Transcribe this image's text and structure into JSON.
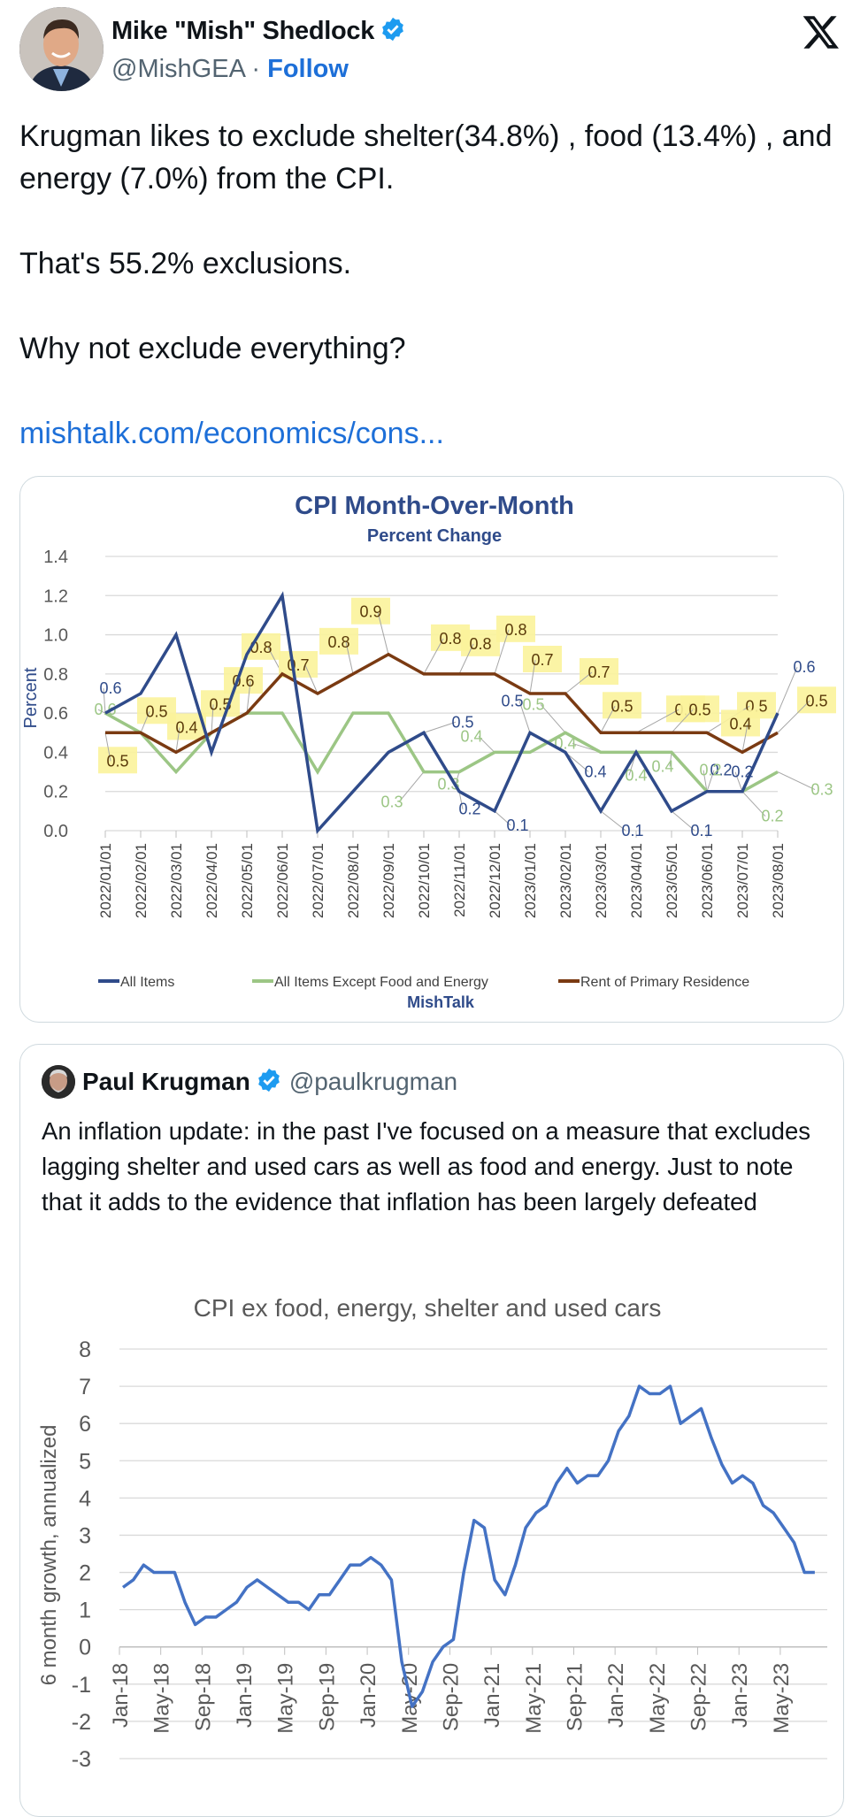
{
  "tweet": {
    "author_name": "Mike \"Mish\" Shedlock",
    "handle": "@MishGEA",
    "separator": "·",
    "follow_label": "Follow",
    "platform_icon": "x-logo-icon",
    "verified_icon": "verified-badge-icon",
    "text_lines": [
      "Krugman likes to exclude shelter(34.8%) , food (13.4%) , and energy (7.0%) from the CPI.",
      "That's 55.2% exclusions.",
      "Why not exclude everything?"
    ],
    "link_text": "mishtalk.com/economics/cons..."
  },
  "quoted_tweet": {
    "author_name": "Paul Krugman",
    "handle": "@paulkrugman",
    "verified_icon": "verified-badge-icon",
    "text": "An inflation update: in the past I've focused on a measure that excludes lagging shelter and used cars as well as food and energy. Just to note that it adds to the evidence that inflation has been largely defeated"
  },
  "colors": {
    "link": "#1d6fd8",
    "all_items": "#2f4b8a",
    "core": "#9cc685",
    "rent": "#7a3a12",
    "label_highlight": "#fbf39b",
    "krugman_line": "#4472c4"
  },
  "chart_data": [
    {
      "type": "line",
      "title": "CPI Month-Over-Month",
      "subtitle": "Percent Change",
      "xlabel": "",
      "ylabel": "Percent",
      "ylim": [
        0,
        1.4
      ],
      "yticks": [
        "0.0",
        "0.2",
        "0.4",
        "0.6",
        "0.8",
        "1.0",
        "1.2",
        "1.4"
      ],
      "grid": true,
      "legend_position": "bottom",
      "source_label": "MishTalk",
      "categories": [
        "2022/01/01",
        "2022/02/01",
        "2022/03/01",
        "2022/04/01",
        "2022/05/01",
        "2022/06/01",
        "2022/07/01",
        "2022/08/01",
        "2022/09/01",
        "2022/10/01",
        "2022/11/01",
        "2022/12/01",
        "2023/01/01",
        "2023/02/01",
        "2023/03/01",
        "2023/04/01",
        "2023/05/01",
        "2023/06/01",
        "2023/07/01",
        "2023/08/01"
      ],
      "series": [
        {
          "name": "All Items",
          "values": [
            0.6,
            0.7,
            1.0,
            0.4,
            0.9,
            1.2,
            0.0,
            0.2,
            0.4,
            0.5,
            0.2,
            0.1,
            0.5,
            0.4,
            0.1,
            0.4,
            0.1,
            0.2,
            0.2,
            0.6
          ]
        },
        {
          "name": "All Items Except Food and Energy",
          "values": [
            0.6,
            0.5,
            0.3,
            0.5,
            0.6,
            0.6,
            0.3,
            0.6,
            0.6,
            0.3,
            0.3,
            0.4,
            0.4,
            0.5,
            0.4,
            0.4,
            0.4,
            0.2,
            0.2,
            0.3
          ]
        },
        {
          "name": "Rent of Primary Residence",
          "values": [
            0.5,
            0.5,
            0.4,
            0.5,
            0.6,
            0.8,
            0.7,
            0.8,
            0.9,
            0.8,
            0.8,
            0.8,
            0.7,
            0.7,
            0.5,
            0.5,
            0.5,
            0.5,
            0.4,
            0.5
          ]
        }
      ],
      "data_labels": [
        {
          "series": 0,
          "index": 0,
          "text": "0.6"
        },
        {
          "series": 0,
          "index": 9,
          "text": "0.5"
        },
        {
          "series": 0,
          "index": 10,
          "text": "0.2"
        },
        {
          "series": 0,
          "index": 11,
          "text": "0.1"
        },
        {
          "series": 0,
          "index": 12,
          "text": "0.5"
        },
        {
          "series": 0,
          "index": 13,
          "text": "0.4"
        },
        {
          "series": 0,
          "index": 14,
          "text": "0.1"
        },
        {
          "series": 0,
          "index": 16,
          "text": "0.1"
        },
        {
          "series": 0,
          "index": 18,
          "text": "0.2"
        },
        {
          "series": 0,
          "index": 19,
          "text": "0.6"
        },
        {
          "series": 0,
          "index": 17,
          "text": "0.2"
        },
        {
          "series": 1,
          "index": 0,
          "text": "0.6"
        },
        {
          "series": 1,
          "index": 9,
          "text": "0.3"
        },
        {
          "series": 1,
          "index": 10,
          "text": "0.3"
        },
        {
          "series": 1,
          "index": 11,
          "text": "0.4"
        },
        {
          "series": 1,
          "index": 13,
          "text": "0.5"
        },
        {
          "series": 1,
          "index": 14,
          "text": "0.4"
        },
        {
          "series": 1,
          "index": 15,
          "text": "0.4"
        },
        {
          "series": 1,
          "index": 16,
          "text": "0.4"
        },
        {
          "series": 1,
          "index": 17,
          "text": "0.2"
        },
        {
          "series": 1,
          "index": 18,
          "text": "0.2"
        },
        {
          "series": 1,
          "index": 19,
          "text": "0.3"
        },
        {
          "series": 2,
          "index": 0,
          "text": "0.5"
        },
        {
          "series": 2,
          "index": 1,
          "text": "0.5"
        },
        {
          "series": 2,
          "index": 2,
          "text": "0.4"
        },
        {
          "series": 2,
          "index": 3,
          "text": "0.5"
        },
        {
          "series": 2,
          "index": 4,
          "text": "0.6"
        },
        {
          "series": 2,
          "index": 5,
          "text": "0.8"
        },
        {
          "series": 2,
          "index": 6,
          "text": "0.7"
        },
        {
          "series": 2,
          "index": 7,
          "text": "0.8"
        },
        {
          "series": 2,
          "index": 8,
          "text": "0.9"
        },
        {
          "series": 2,
          "index": 9,
          "text": "0.8"
        },
        {
          "series": 2,
          "index": 10,
          "text": "0.8"
        },
        {
          "series": 2,
          "index": 11,
          "text": "0.8"
        },
        {
          "series": 2,
          "index": 12,
          "text": "0.7"
        },
        {
          "series": 2,
          "index": 13,
          "text": "0.7"
        },
        {
          "series": 2,
          "index": 14,
          "text": "0.5"
        },
        {
          "series": 2,
          "index": 15,
          "text": "0.5"
        },
        {
          "series": 2,
          "index": 16,
          "text": "0.5"
        },
        {
          "series": 2,
          "index": 17,
          "text": "0.5"
        },
        {
          "series": 2,
          "index": 18,
          "text": "0.4"
        },
        {
          "series": 2,
          "index": 19,
          "text": "0.5"
        }
      ]
    },
    {
      "type": "line",
      "title": "CPI ex food, energy, shelter and used cars",
      "xlabel": "",
      "ylabel": "6 month growth, annualized",
      "ylim": [
        -3,
        8
      ],
      "yticks": [
        "-3",
        "-2",
        "-1",
        "0",
        "1",
        "2",
        "3",
        "4",
        "5",
        "6",
        "7",
        "8"
      ],
      "grid": true,
      "x_tick_labels": [
        "Jan-18",
        "May-18",
        "Sep-18",
        "Jan-19",
        "May-19",
        "Sep-19",
        "Jan-20",
        "May-20",
        "Sep-20",
        "Jan-21",
        "May-21",
        "Sep-21",
        "Jan-22",
        "May-22",
        "Sep-22",
        "Jan-23",
        "May-23"
      ],
      "x_start": "Jan-18",
      "x_frequency": "monthly",
      "series": [
        {
          "name": "CPI ex food, energy, shelter and used cars",
          "values": [
            1.6,
            1.8,
            2.2,
            2.0,
            2.0,
            2.0,
            1.2,
            0.6,
            0.8,
            0.8,
            1.0,
            1.2,
            1.6,
            1.8,
            1.6,
            1.4,
            1.2,
            1.2,
            1.0,
            1.4,
            1.4,
            1.8,
            2.2,
            2.2,
            2.4,
            2.2,
            1.8,
            -0.4,
            -1.6,
            -1.2,
            -0.4,
            0.0,
            0.2,
            2.0,
            3.4,
            3.2,
            1.8,
            1.4,
            2.2,
            3.2,
            3.6,
            3.8,
            4.4,
            4.8,
            4.4,
            4.6,
            4.6,
            5.0,
            5.8,
            6.2,
            7.0,
            6.8,
            6.8,
            7.0,
            6.0,
            6.2,
            6.4,
            5.6,
            4.9,
            4.4,
            4.6,
            4.4,
            3.8,
            3.6,
            3.2,
            2.8,
            2.0,
            2.0
          ]
        }
      ]
    }
  ]
}
